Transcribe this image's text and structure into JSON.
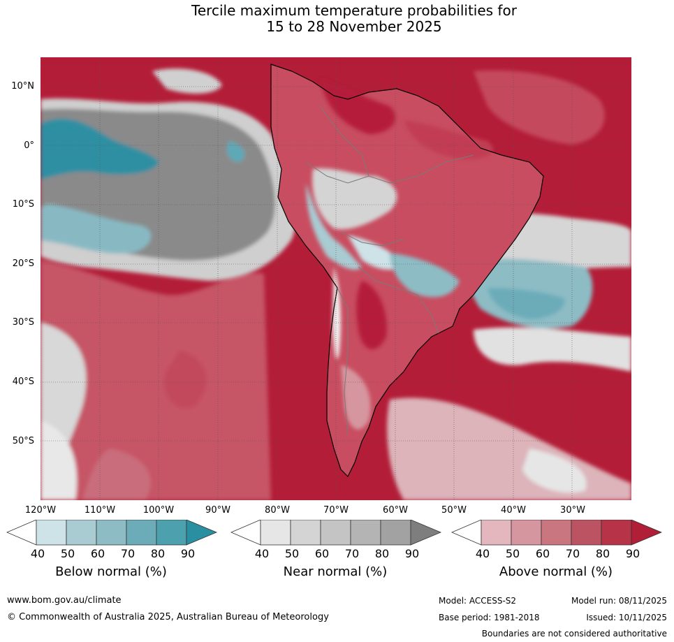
{
  "title_line1": "Tercile maximum temperature probabilities for",
  "title_line2": "15 to 28 November 2025",
  "map": {
    "lat_labels": [
      "10°N",
      "0°",
      "10°S",
      "20°S",
      "30°S",
      "40°S",
      "50°S"
    ],
    "lon_labels": [
      "120°W",
      "110°W",
      "100°W",
      "90°W",
      "80°W",
      "70°W",
      "60°W",
      "50°W",
      "40°W",
      "30°W"
    ],
    "lat_range": [
      -60,
      15
    ],
    "lon_range": [
      -120,
      -20
    ]
  },
  "colorbars": [
    {
      "title": "Below normal (%)",
      "ticks": [
        "40",
        "50",
        "60",
        "70",
        "80",
        "90"
      ],
      "colors": [
        "#ffffff",
        "#cde3e8",
        "#a9cbd2",
        "#8dbcc5",
        "#6cacb9",
        "#4da0ae",
        "#2b8fa2"
      ]
    },
    {
      "title": "Near normal (%)",
      "ticks": [
        "40",
        "50",
        "60",
        "70",
        "80",
        "90"
      ],
      "colors": [
        "#ffffff",
        "#e6e6e6",
        "#d4d4d4",
        "#c4c4c4",
        "#b4b4b4",
        "#a2a2a2",
        "#7e7e7e"
      ]
    },
    {
      "title": "Above normal (%)",
      "ticks": [
        "40",
        "50",
        "60",
        "70",
        "80",
        "90"
      ],
      "colors": [
        "#ffffff",
        "#e3b7bd",
        "#d6969f",
        "#c97681",
        "#bc5362",
        "#b73347",
        "#b01e38"
      ]
    }
  ],
  "footer": {
    "website": "www.bom.gov.au/climate",
    "copyright": "© Commonwealth of Australia 2025, Australian Bureau of Meteorology",
    "model": "Model: ACCESS-S2",
    "model_run": "Model run: 08/11/2025",
    "base_period": "Base period: 1981-2018",
    "issued": "Issued: 10/11/2025",
    "boundaries": "Boundaries are not considered authoritative"
  }
}
